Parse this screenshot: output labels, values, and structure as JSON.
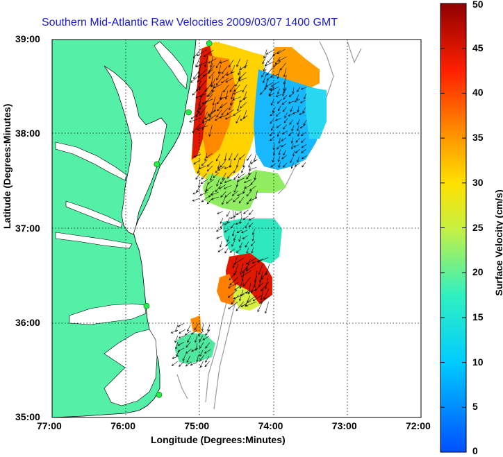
{
  "title": "Southern Mid-Atlantic Raw Velocities 2009/03/07 1400 GMT",
  "xlabel": "Longitude (Degrees:Minutes)",
  "ylabel": "Latitude (Degrees:Minutes)",
  "colorbar_label": "Surface Velocity (cm/s)",
  "x_ticks": [
    "77:00",
    "76:00",
    "75:00",
    "74:00",
    "73:00",
    "72:00"
  ],
  "y_ticks": [
    "39:00",
    "38:00",
    "37:00",
    "36:00",
    "35:00"
  ],
  "cb_ticks": [
    "0",
    "5",
    "10",
    "15",
    "20",
    "25",
    "30",
    "35",
    "40",
    "45",
    "50"
  ],
  "colors": {
    "land": "#54f0a8",
    "title": "#1a1ad6",
    "bathymetry": "#9a9a9a"
  },
  "chart_data": {
    "type": "heatmap",
    "title": "Southern Mid-Atlantic Raw Velocities 2009/03/07 1400 GMT",
    "xlabel": "Longitude (Degrees:Minutes)",
    "ylabel": "Latitude (Degrees:Minutes)",
    "xlim": [
      -77,
      -72
    ],
    "ylim": [
      35,
      39
    ],
    "colorbar": {
      "label": "Surface Velocity (cm/s)",
      "range": [
        0,
        50
      ]
    },
    "grid": true,
    "stations": [
      {
        "lon": -74.87,
        "lat": 38.96
      },
      {
        "lon": -75.15,
        "lat": 38.23
      },
      {
        "lon": -75.58,
        "lat": 37.68
      },
      {
        "lon": -75.72,
        "lat": 36.18
      },
      {
        "lon": -75.55,
        "lat": 35.24
      }
    ],
    "velocity_regions": [
      {
        "lon": [
          -75.0,
          -74.8
        ],
        "lat": [
          38.1,
          38.9
        ],
        "speed": 45
      },
      {
        "lon": [
          -74.8,
          -74.3
        ],
        "lat": [
          38.2,
          38.8
        ],
        "speed": 28
      },
      {
        "lon": [
          -74.0,
          -73.5
        ],
        "lat": [
          37.7,
          38.5
        ],
        "speed": 10
      },
      {
        "lon": [
          -74.1,
          -73.8
        ],
        "lat": [
          38.5,
          38.9
        ],
        "speed": 30
      },
      {
        "lon": [
          -75.0,
          -74.2
        ],
        "lat": [
          37.3,
          37.8
        ],
        "speed": 22
      },
      {
        "lon": [
          -74.7,
          -74.2
        ],
        "lat": [
          36.8,
          37.2
        ],
        "speed": 12
      },
      {
        "lon": [
          -74.5,
          -74.0
        ],
        "lat": [
          36.2,
          36.7
        ],
        "speed": 45
      },
      {
        "lon": [
          -75.3,
          -74.8
        ],
        "lat": [
          35.6,
          36.0
        ],
        "speed": 18
      }
    ]
  }
}
